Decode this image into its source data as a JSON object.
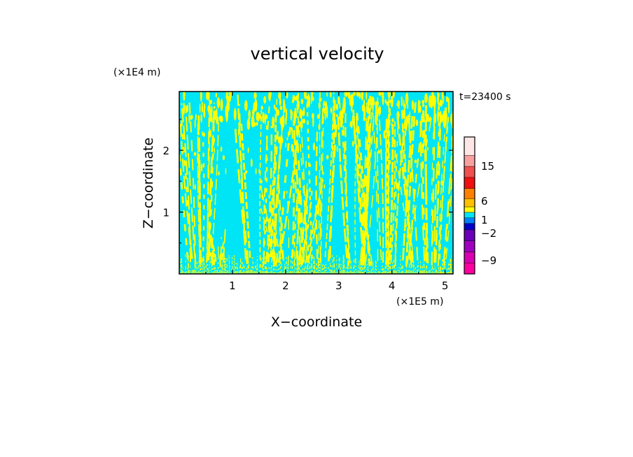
{
  "chart_data": {
    "type": "heatmap",
    "title": "vertical velocity",
    "xlabel": "X−coordinate",
    "ylabel": "Z−coordinate",
    "x_unit": "(×1E5 m)",
    "y_unit": "(×1E4 m)",
    "time_label": "t=23400 s",
    "xlim": [
      0,
      5.15
    ],
    "ylim": [
      0,
      2.95
    ],
    "x_ticks": [
      1,
      2,
      3,
      4,
      5
    ],
    "y_ticks": [
      1,
      2
    ],
    "background_level_color": "#00e5f5",
    "positive_level_color": "#ffff00",
    "colorbar": {
      "colors": [
        "#ff00a0",
        "#d800b0",
        "#a000c0",
        "#6a00b8",
        "#0000c8",
        "#0080ff",
        "#00e5f5",
        "#ffff00",
        "#ffc000",
        "#ff8000",
        "#f01010",
        "#f05050",
        "#f8a0a0",
        "#ffe6e6"
      ],
      "labels": [
        {
          "text": "15",
          "level": 15
        },
        {
          "text": "6",
          "level": 6
        },
        {
          "text": "1",
          "level": 1
        },
        {
          "text": "−2",
          "level": -2
        },
        {
          "text": "−9",
          "level": -9
        }
      ]
    },
    "updraft_clusters": [
      {
        "x_center": 0.45,
        "x_spread": 0.35,
        "z_top": 2.95,
        "density": 0.7
      },
      {
        "x_center": 0.75,
        "x_spread": 0.15,
        "z_top": 0.8,
        "density": 0.5
      },
      {
        "x_center": 1.5,
        "x_spread": 0.4,
        "z_top": 2.95,
        "density": 0.7
      },
      {
        "x_center": 2.1,
        "x_spread": 0.35,
        "z_top": 1.6,
        "density": 0.9
      },
      {
        "x_center": 2.6,
        "x_spread": 0.3,
        "z_top": 2.95,
        "density": 0.6
      },
      {
        "x_center": 3.3,
        "x_spread": 0.2,
        "z_top": 2.95,
        "density": 0.6
      },
      {
        "x_center": 3.9,
        "x_spread": 0.45,
        "z_top": 2.95,
        "density": 1.0
      },
      {
        "x_center": 4.7,
        "x_spread": 0.35,
        "z_top": 2.95,
        "density": 0.9
      }
    ]
  }
}
